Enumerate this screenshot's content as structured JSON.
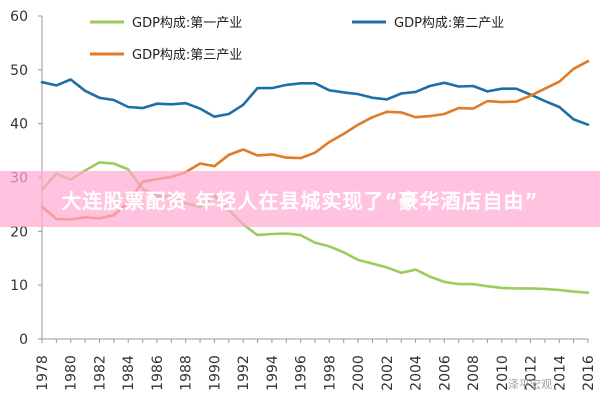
{
  "banner": {
    "text": "大连股票配资 年轻人在县城实现了“豪华酒店自由”"
  },
  "watermark": {
    "text": "泽平宏观"
  },
  "colors": {
    "primary": "#9ACD5A",
    "secondary": "#1F6FA7",
    "tertiary": "#E07B28"
  },
  "chart_data": {
    "type": "line",
    "x": [
      1978,
      1979,
      1980,
      1981,
      1982,
      1983,
      1984,
      1985,
      1986,
      1987,
      1988,
      1989,
      1990,
      1991,
      1992,
      1993,
      1994,
      1995,
      1996,
      1997,
      1998,
      1999,
      2000,
      2001,
      2002,
      2003,
      2004,
      2005,
      2006,
      2007,
      2008,
      2009,
      2010,
      2011,
      2012,
      2013,
      2014,
      2015,
      2016
    ],
    "x_ticks": [
      "1978",
      "1980",
      "1982",
      "1984",
      "1986",
      "1988",
      "1990",
      "1992",
      "1994",
      "1996",
      "1998",
      "2000",
      "2002",
      "2004",
      "2006",
      "2008",
      "2010",
      "2012",
      "2014",
      "2016"
    ],
    "y_ticks": [
      "0",
      "10",
      "20",
      "30",
      "40",
      "50",
      "60"
    ],
    "ylim": [
      0,
      60
    ],
    "legend_position": "top",
    "series": [
      {
        "name": "GDP构成:第一产业",
        "color": "#9ACD5A",
        "values": [
          27.7,
          30.7,
          29.6,
          31.3,
          32.8,
          32.6,
          31.5,
          27.9,
          26.6,
          26.3,
          25.2,
          24.6,
          26.6,
          24.0,
          21.3,
          19.3,
          19.5,
          19.6,
          19.3,
          17.9,
          17.2,
          16.1,
          14.7,
          14.0,
          13.3,
          12.3,
          12.9,
          11.6,
          10.6,
          10.2,
          10.2,
          9.8,
          9.5,
          9.4,
          9.4,
          9.3,
          9.1,
          8.8,
          8.6
        ]
      },
      {
        "name": "GDP构成:第二产业",
        "color": "#1F6FA7",
        "values": [
          47.7,
          47.1,
          48.2,
          46.1,
          44.8,
          44.4,
          43.1,
          42.9,
          43.7,
          43.6,
          43.8,
          42.8,
          41.3,
          41.8,
          43.5,
          46.6,
          46.6,
          47.2,
          47.5,
          47.5,
          46.2,
          45.8,
          45.5,
          44.8,
          44.5,
          45.6,
          45.9,
          47.0,
          47.6,
          46.9,
          47.0,
          46.0,
          46.5,
          46.5,
          45.4,
          44.2,
          43.1,
          40.8,
          39.8
        ]
      },
      {
        "name": "GDP构成:第三产业",
        "color": "#E07B28",
        "values": [
          24.6,
          22.3,
          22.2,
          22.6,
          22.4,
          23.0,
          25.4,
          29.2,
          29.7,
          30.1,
          31.0,
          32.6,
          32.1,
          34.2,
          35.2,
          34.1,
          34.3,
          33.7,
          33.6,
          34.6,
          36.6,
          38.1,
          39.8,
          41.2,
          42.2,
          42.1,
          41.2,
          41.4,
          41.8,
          42.9,
          42.8,
          44.2,
          44.0,
          44.1,
          45.2,
          46.5,
          47.8,
          50.2,
          51.6
        ]
      }
    ]
  }
}
